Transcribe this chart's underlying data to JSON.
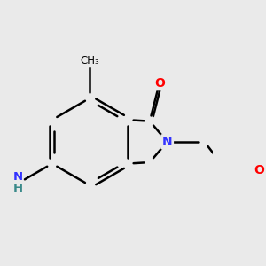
{
  "bg_color": "#eaeaea",
  "bond_color": "#000000",
  "bond_width": 1.8,
  "colors": {
    "C": "#000000",
    "N": "#3333ff",
    "O": "#ff0000",
    "NH2_H": "#3a8a8a",
    "NH2_N": "#3333ff"
  },
  "font_size": 10,
  "font_size_small": 8.5,
  "bl": 1.0
}
